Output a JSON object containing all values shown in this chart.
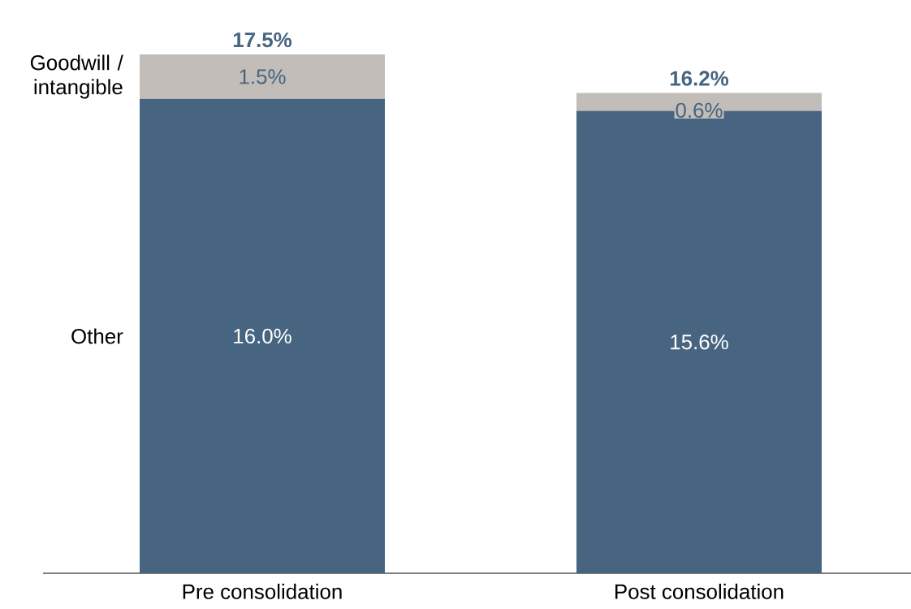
{
  "chart_data": {
    "type": "bar",
    "stacked": true,
    "categories": [
      "Pre consolidation",
      "Post consolidation"
    ],
    "series": [
      {
        "name": "Other",
        "color": "#476580",
        "values": [
          16.0,
          15.6
        ],
        "value_labels": [
          "16.0%",
          "15.6%"
        ]
      },
      {
        "name": "Goodwill / intangible",
        "color": "#c2bdb8",
        "values": [
          1.5,
          0.6
        ],
        "value_labels": [
          "1.5%",
          "0.6%"
        ]
      }
    ],
    "totals": [
      "17.5%",
      "16.2%"
    ]
  }
}
